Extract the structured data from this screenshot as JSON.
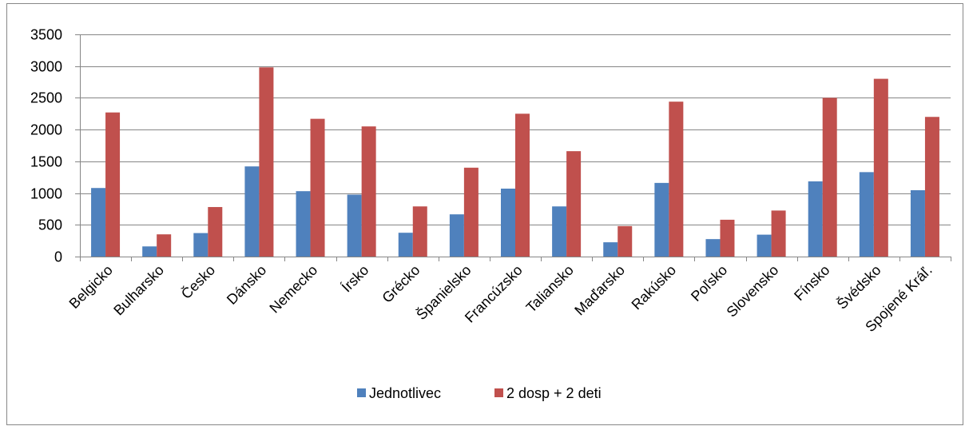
{
  "chart_data": {
    "type": "bar",
    "title": "",
    "xlabel": "",
    "ylabel": "",
    "ylim": [
      0,
      3500
    ],
    "yticks": [
      0,
      500,
      1000,
      1500,
      2000,
      2500,
      3000,
      3500
    ],
    "grid": true,
    "legend_position": "bottom",
    "categories": [
      "Belgicko",
      "Bulharsko",
      "Česko",
      "Dánsko",
      "Nemecko",
      "Írsko",
      "Grécko",
      "Španielsko",
      "Francúzsko",
      "Taliansko",
      "Maďarsko",
      "Rakúsko",
      "Poľsko",
      "Slovensko",
      "Fínsko",
      "Švédsko",
      "Spojené Kráľ."
    ],
    "series": [
      {
        "name": "Jednotlivec",
        "color": "#4F81BD",
        "values": [
          1080,
          160,
          370,
          1420,
          1030,
          975,
          375,
          665,
          1070,
          790,
          225,
          1160,
          275,
          345,
          1185,
          1330,
          1045
        ]
      },
      {
        "name": "2 dosp + 2 deti",
        "color": "#C0504D",
        "values": [
          2270,
          350,
          780,
          2980,
          2170,
          2050,
          790,
          1400,
          2250,
          1660,
          480,
          2440,
          580,
          725,
          2500,
          2800,
          2200
        ]
      }
    ]
  }
}
